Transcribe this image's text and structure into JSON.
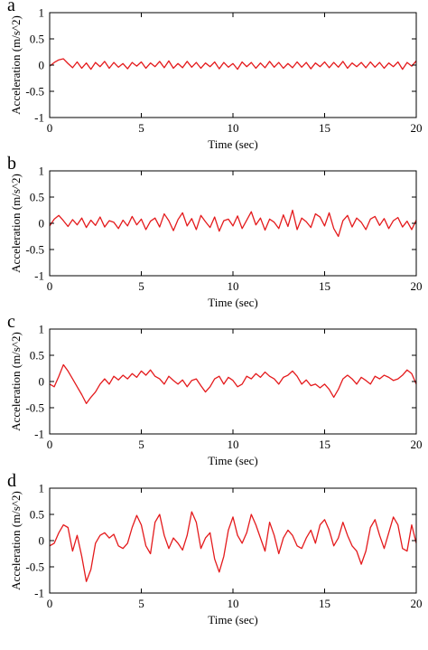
{
  "panels": [
    {
      "letter": "a",
      "xlabel": "Time (sec)",
      "ylabel": "Acceleration (m/s^2)"
    },
    {
      "letter": "b",
      "xlabel": "Time (sec)",
      "ylabel": "Acceleration (m/s^2)"
    },
    {
      "letter": "c",
      "xlabel": "Time (sec)",
      "ylabel": "Acceleration (m/s^2)"
    },
    {
      "letter": "d",
      "xlabel": "Time (sec)",
      "ylabel": "Acceleration (m/s^2)"
    }
  ],
  "chart_data": [
    {
      "type": "line",
      "title": "",
      "xlabel": "Time (sec)",
      "ylabel": "Acceleration (m/s^2)",
      "xlim": [
        0,
        20
      ],
      "ylim": [
        -1,
        1
      ],
      "xticks": [
        0,
        5,
        10,
        15,
        20
      ],
      "yticks": [
        -1,
        -0.5,
        0,
        0.5,
        1
      ],
      "grid": false,
      "color": "#e41a1c",
      "series": [
        {
          "x": [
            0,
            0.25,
            0.5,
            0.75,
            1,
            1.25,
            1.5,
            1.75,
            2,
            2.25,
            2.5,
            2.75,
            3,
            3.25,
            3.5,
            3.75,
            4,
            4.25,
            4.5,
            4.75,
            5,
            5.25,
            5.5,
            5.75,
            6,
            6.25,
            6.5,
            6.75,
            7,
            7.25,
            7.5,
            7.75,
            8,
            8.25,
            8.5,
            8.75,
            9,
            9.25,
            9.5,
            9.75,
            10,
            10.25,
            10.5,
            10.75,
            11,
            11.25,
            11.5,
            11.75,
            12,
            12.25,
            12.5,
            12.75,
            13,
            13.25,
            13.5,
            13.75,
            14,
            14.25,
            14.5,
            14.75,
            15,
            15.25,
            15.5,
            15.75,
            16,
            16.25,
            16.5,
            16.75,
            17,
            17.25,
            17.5,
            17.75,
            18,
            18.25,
            18.5,
            18.75,
            19,
            19.25,
            19.5,
            19.75,
            20
          ],
          "y": [
            -0.02,
            0.05,
            0.1,
            0.12,
            0.03,
            -0.05,
            0.06,
            -0.06,
            0.04,
            -0.08,
            0.05,
            -0.03,
            0.07,
            -0.06,
            0.05,
            -0.04,
            0.03,
            -0.07,
            0.05,
            -0.02,
            0.06,
            -0.06,
            0.04,
            -0.03,
            0.07,
            -0.05,
            0.08,
            -0.06,
            0.03,
            -0.05,
            0.07,
            -0.04,
            0.05,
            -0.06,
            0.04,
            -0.03,
            0.06,
            -0.07,
            0.05,
            -0.04,
            0.03,
            -0.08,
            0.06,
            -0.03,
            0.05,
            -0.06,
            0.04,
            -0.05,
            0.07,
            -0.04,
            0.05,
            -0.06,
            0.03,
            -0.05,
            0.06,
            -0.04,
            0.05,
            -0.07,
            0.04,
            -0.03,
            0.06,
            -0.05,
            0.05,
            -0.04,
            0.07,
            -0.06,
            0.04,
            -0.03,
            0.05,
            -0.05,
            0.06,
            -0.04,
            0.05,
            -0.06,
            0.04,
            -0.03,
            0.06,
            -0.08,
            0.05,
            -0.02,
            0.08
          ]
        }
      ]
    },
    {
      "type": "line",
      "title": "",
      "xlabel": "Time (sec)",
      "ylabel": "Acceleration (m/s^2)",
      "xlim": [
        0,
        20
      ],
      "ylim": [
        -1,
        1
      ],
      "xticks": [
        0,
        5,
        10,
        15,
        20
      ],
      "yticks": [
        -1,
        -0.5,
        0,
        0.5,
        1
      ],
      "grid": false,
      "color": "#e41a1c",
      "series": [
        {
          "x": [
            0,
            0.25,
            0.5,
            0.75,
            1,
            1.25,
            1.5,
            1.75,
            2,
            2.25,
            2.5,
            2.75,
            3,
            3.25,
            3.5,
            3.75,
            4,
            4.25,
            4.5,
            4.75,
            5,
            5.25,
            5.5,
            5.75,
            6,
            6.25,
            6.5,
            6.75,
            7,
            7.25,
            7.5,
            7.75,
            8,
            8.25,
            8.5,
            8.75,
            9,
            9.25,
            9.5,
            9.75,
            10,
            10.25,
            10.5,
            10.75,
            11,
            11.25,
            11.5,
            11.75,
            12,
            12.25,
            12.5,
            12.75,
            13,
            13.25,
            13.5,
            13.75,
            14,
            14.25,
            14.5,
            14.75,
            15,
            15.25,
            15.5,
            15.75,
            16,
            16.25,
            16.5,
            16.75,
            17,
            17.25,
            17.5,
            17.75,
            18,
            18.25,
            18.5,
            18.75,
            19,
            19.25,
            19.5,
            19.75,
            20
          ],
          "y": [
            -0.05,
            0.08,
            0.15,
            0.05,
            -0.06,
            0.07,
            -0.03,
            0.1,
            -0.08,
            0.06,
            -0.04,
            0.12,
            -0.07,
            0.05,
            0.02,
            -0.1,
            0.06,
            -0.05,
            0.13,
            -0.03,
            0.08,
            -0.12,
            0.04,
            0.1,
            -0.07,
            0.18,
            0.05,
            -0.14,
            0.07,
            0.2,
            -0.05,
            0.09,
            -0.12,
            0.15,
            0.03,
            -0.08,
            0.12,
            -0.15,
            0.05,
            0.08,
            -0.05,
            0.14,
            -0.1,
            0.06,
            0.22,
            -0.03,
            0.1,
            -0.13,
            0.08,
            0.02,
            -0.1,
            0.16,
            -0.06,
            0.25,
            -0.12,
            0.1,
            0.03,
            -0.08,
            0.18,
            0.12,
            -0.05,
            0.2,
            -0.1,
            -0.25,
            0.05,
            0.15,
            -0.07,
            0.1,
            0.02,
            -0.12,
            0.08,
            0.13,
            -0.04,
            0.09,
            -0.1,
            0.05,
            0.11,
            -0.07,
            0.04,
            -0.12,
            0.06
          ]
        }
      ]
    },
    {
      "type": "line",
      "title": "",
      "xlabel": "Time (sec)",
      "ylabel": "Acceleration (m/s^2)",
      "xlim": [
        0,
        20
      ],
      "ylim": [
        -1,
        1
      ],
      "xticks": [
        0,
        5,
        10,
        15,
        20
      ],
      "yticks": [
        -1,
        -0.5,
        0,
        0.5,
        1
      ],
      "grid": false,
      "color": "#e41a1c",
      "series": [
        {
          "x": [
            0,
            0.25,
            0.5,
            0.75,
            1,
            1.25,
            1.5,
            1.75,
            2,
            2.25,
            2.5,
            2.75,
            3,
            3.25,
            3.5,
            3.75,
            4,
            4.25,
            4.5,
            4.75,
            5,
            5.25,
            5.5,
            5.75,
            6,
            6.25,
            6.5,
            6.75,
            7,
            7.25,
            7.5,
            7.75,
            8,
            8.25,
            8.5,
            8.75,
            9,
            9.25,
            9.5,
            9.75,
            10,
            10.25,
            10.5,
            10.75,
            11,
            11.25,
            11.5,
            11.75,
            12,
            12.25,
            12.5,
            12.75,
            13,
            13.25,
            13.5,
            13.75,
            14,
            14.25,
            14.5,
            14.75,
            15,
            15.25,
            15.5,
            15.75,
            16,
            16.25,
            16.5,
            16.75,
            17,
            17.25,
            17.5,
            17.75,
            18,
            18.25,
            18.5,
            18.75,
            19,
            19.25,
            19.5,
            19.75,
            20
          ],
          "y": [
            -0.05,
            -0.1,
            0.1,
            0.32,
            0.2,
            0.05,
            -0.1,
            -0.25,
            -0.42,
            -0.3,
            -0.2,
            -0.05,
            0.05,
            -0.05,
            0.1,
            0.03,
            0.12,
            0.05,
            0.15,
            0.08,
            0.2,
            0.12,
            0.22,
            0.1,
            0.05,
            -0.05,
            0.1,
            0.02,
            -0.05,
            0.03,
            -0.1,
            0.02,
            0.05,
            -0.08,
            -0.2,
            -0.1,
            0.05,
            0.1,
            -0.05,
            0.08,
            0.02,
            -0.1,
            -0.05,
            0.1,
            0.05,
            0.15,
            0.08,
            0.18,
            0.1,
            0.05,
            -0.05,
            0.08,
            0.12,
            0.2,
            0.1,
            -0.05,
            0.03,
            -0.08,
            -0.05,
            -0.12,
            -0.05,
            -0.15,
            -0.3,
            -0.15,
            0.05,
            0.12,
            0.05,
            -0.05,
            0.08,
            0.02,
            -0.05,
            0.1,
            0.05,
            0.12,
            0.08,
            0.02,
            0.05,
            0.12,
            0.22,
            0.15,
            -0.05
          ]
        }
      ]
    },
    {
      "type": "line",
      "title": "",
      "xlabel": "Time (sec)",
      "ylabel": "Acceleration (m/s^2)",
      "xlim": [
        0,
        20
      ],
      "ylim": [
        -1,
        1
      ],
      "xticks": [
        0,
        5,
        10,
        15,
        20
      ],
      "yticks": [
        -1,
        -0.5,
        0,
        0.5,
        1
      ],
      "grid": false,
      "color": "#e41a1c",
      "series": [
        {
          "x": [
            0,
            0.25,
            0.5,
            0.75,
            1,
            1.25,
            1.5,
            1.75,
            2,
            2.25,
            2.5,
            2.75,
            3,
            3.25,
            3.5,
            3.75,
            4,
            4.25,
            4.5,
            4.75,
            5,
            5.25,
            5.5,
            5.75,
            6,
            6.25,
            6.5,
            6.75,
            7,
            7.25,
            7.5,
            7.75,
            8,
            8.25,
            8.5,
            8.75,
            9,
            9.25,
            9.5,
            9.75,
            10,
            10.25,
            10.5,
            10.75,
            11,
            11.25,
            11.5,
            11.75,
            12,
            12.25,
            12.5,
            12.75,
            13,
            13.25,
            13.5,
            13.75,
            14,
            14.25,
            14.5,
            14.75,
            15,
            15.25,
            15.5,
            15.75,
            16,
            16.25,
            16.5,
            16.75,
            17,
            17.25,
            17.5,
            17.75,
            18,
            18.25,
            18.5,
            18.75,
            19,
            19.25,
            19.5,
            19.75,
            20
          ],
          "y": [
            -0.1,
            -0.05,
            0.15,
            0.3,
            0.25,
            -0.2,
            0.1,
            -0.3,
            -0.78,
            -0.55,
            -0.05,
            0.1,
            0.15,
            0.05,
            0.12,
            -0.1,
            -0.15,
            -0.05,
            0.25,
            0.48,
            0.3,
            -0.1,
            -0.25,
            0.35,
            0.5,
            0.1,
            -0.15,
            0.05,
            -0.05,
            -0.18,
            0.1,
            0.55,
            0.35,
            -0.15,
            0.05,
            0.15,
            -0.35,
            -0.6,
            -0.3,
            0.2,
            0.45,
            0.1,
            -0.05,
            0.15,
            0.5,
            0.3,
            0.05,
            -0.2,
            0.35,
            0.1,
            -0.25,
            0.05,
            0.2,
            0.1,
            -0.1,
            -0.15,
            0.05,
            0.2,
            -0.05,
            0.3,
            0.4,
            0.2,
            -0.1,
            0.05,
            0.35,
            0.1,
            -0.1,
            -0.2,
            -0.45,
            -0.2,
            0.25,
            0.4,
            0.1,
            -0.15,
            0.15,
            0.45,
            0.3,
            -0.15,
            -0.2,
            0.3,
            -0.05
          ]
        }
      ]
    }
  ]
}
